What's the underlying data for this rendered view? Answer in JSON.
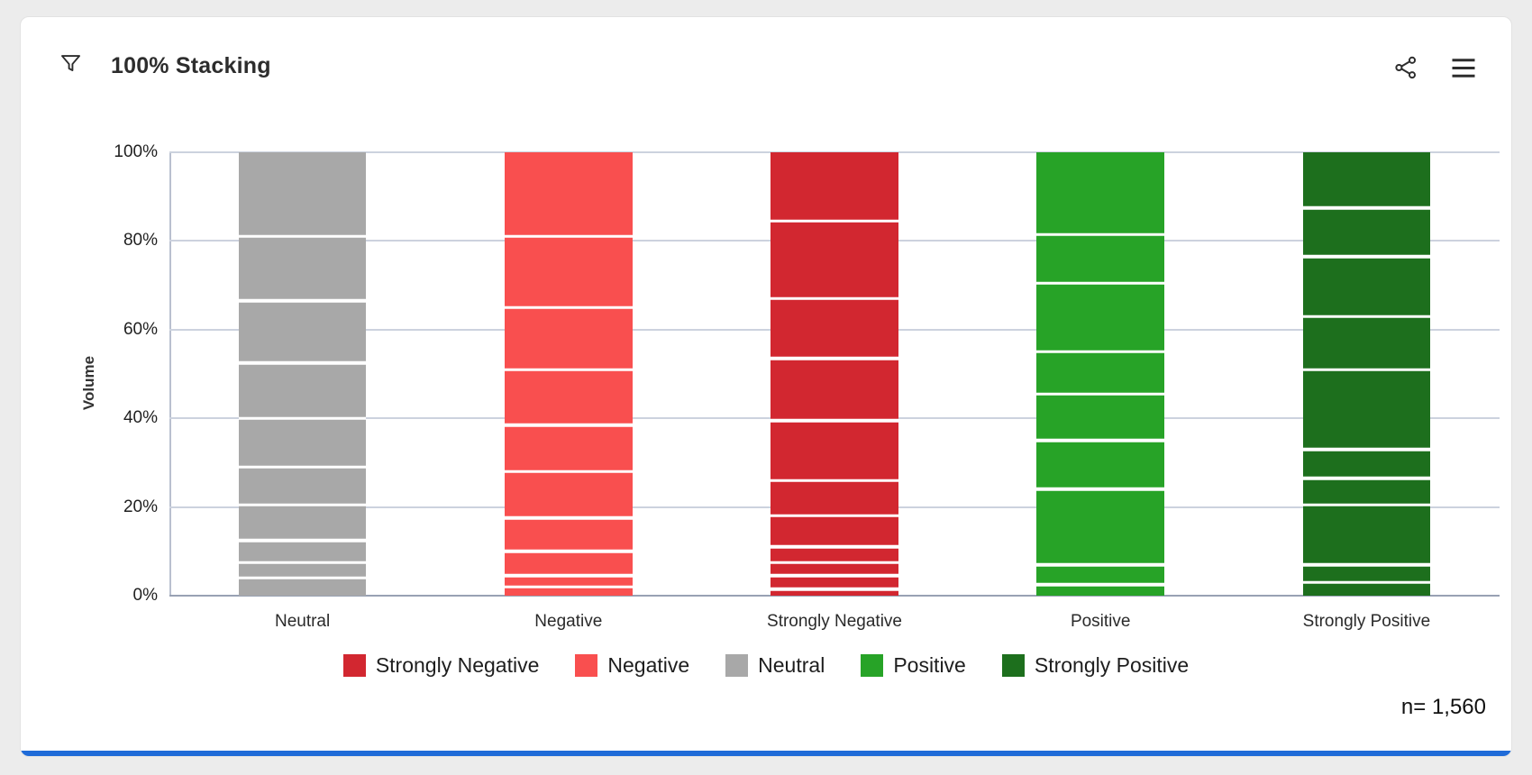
{
  "header": {
    "title": "100% Stacking",
    "icons": {
      "filter": "funnel-filter",
      "share": "share-network",
      "menu": "hamburger-menu"
    }
  },
  "footer": {
    "n_label": "n= 1,560"
  },
  "colors": {
    "accent_bottom_bar": "#1f6bd8",
    "grid_line": "#ccd2de",
    "axis_line_bottom": "#98a1b3",
    "axis_line_left": "#b9c0cf",
    "segment_divider": "#ffffff",
    "card_background": "#ffffff",
    "page_background": "#ececec",
    "title_text": "#2d2d2d"
  },
  "chart_data": {
    "type": "bar",
    "stacking": "100%",
    "title": "100% Stacking",
    "xlabel": "",
    "ylabel": "Volume",
    "ylim": [
      0,
      100
    ],
    "ytick_labels": [
      "0%",
      "20%",
      "40%",
      "60%",
      "80%",
      "100%"
    ],
    "grid": true,
    "legend_position": "bottom",
    "sample_size": "n= 1,560",
    "categories": [
      "Neutral",
      "Negative",
      "Strongly Negative",
      "Positive",
      "Strongly Positive"
    ],
    "bars": [
      {
        "category": "Neutral",
        "color": "#a8a8a8",
        "total_pct": 100,
        "segment_boundaries_pct": [
          4,
          7.5,
          12.5,
          20.5,
          29,
          40,
          52.5,
          66.5,
          81,
          100
        ]
      },
      {
        "category": "Negative",
        "color": "#f94f4f",
        "total_pct": 100,
        "segment_boundaries_pct": [
          2,
          4.5,
          10,
          17.5,
          28,
          38.5,
          51,
          65,
          81,
          100
        ]
      },
      {
        "category": "Strongly Negative",
        "color": "#d22730",
        "total_pct": 100,
        "segment_boundaries_pct": [
          1.5,
          4.5,
          7.5,
          11,
          18,
          26,
          39.5,
          53.5,
          67,
          84.5,
          100
        ]
      },
      {
        "category": "Positive",
        "color": "#27a327",
        "total_pct": 100,
        "segment_boundaries_pct": [
          2.5,
          7,
          24,
          35,
          45.5,
          55,
          70.5,
          81.5,
          100
        ]
      },
      {
        "category": "Strongly Positive",
        "color": "#1d6f1d",
        "total_pct": 100,
        "segment_boundaries_pct": [
          3,
          7,
          20.5,
          26.5,
          33,
          51,
          63,
          76.5,
          87.5,
          100
        ]
      }
    ],
    "legend": [
      {
        "label": "Strongly Negative",
        "color": "#d22730"
      },
      {
        "label": "Negative",
        "color": "#f94f4f"
      },
      {
        "label": "Neutral",
        "color": "#a8a8a8"
      },
      {
        "label": "Positive",
        "color": "#27a327"
      },
      {
        "label": "Strongly Positive",
        "color": "#1d6f1d"
      }
    ]
  }
}
